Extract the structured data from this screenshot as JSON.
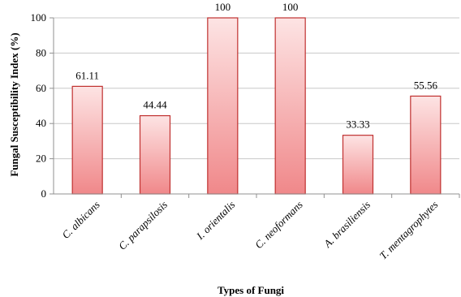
{
  "chart_data": {
    "type": "bar",
    "categories": [
      "C. albicans",
      "C. parapsilosis",
      "I. orientalis",
      "C. neoformans",
      "A. brasiliensis",
      "T. mentagrophytes"
    ],
    "values": [
      61.11,
      44.44,
      100,
      100,
      33.33,
      55.56
    ],
    "data_labels": [
      "61.11",
      "44.44",
      "100",
      "100",
      "33.33",
      "55.56"
    ],
    "xlabel": "Types of Fungi",
    "ylabel": "Fungal Susceptibility Index (%)",
    "ylim": [
      0,
      100
    ],
    "yticks": [
      "0",
      "20",
      "40",
      "60",
      "80",
      "100"
    ],
    "grid": true,
    "colors": {
      "bar_fill_top": "#fde4e4",
      "bar_fill_bottom": "#f0888a",
      "bar_border": "#c0302f",
      "gridline": "#c8c8c8",
      "axis": "#909090"
    }
  }
}
